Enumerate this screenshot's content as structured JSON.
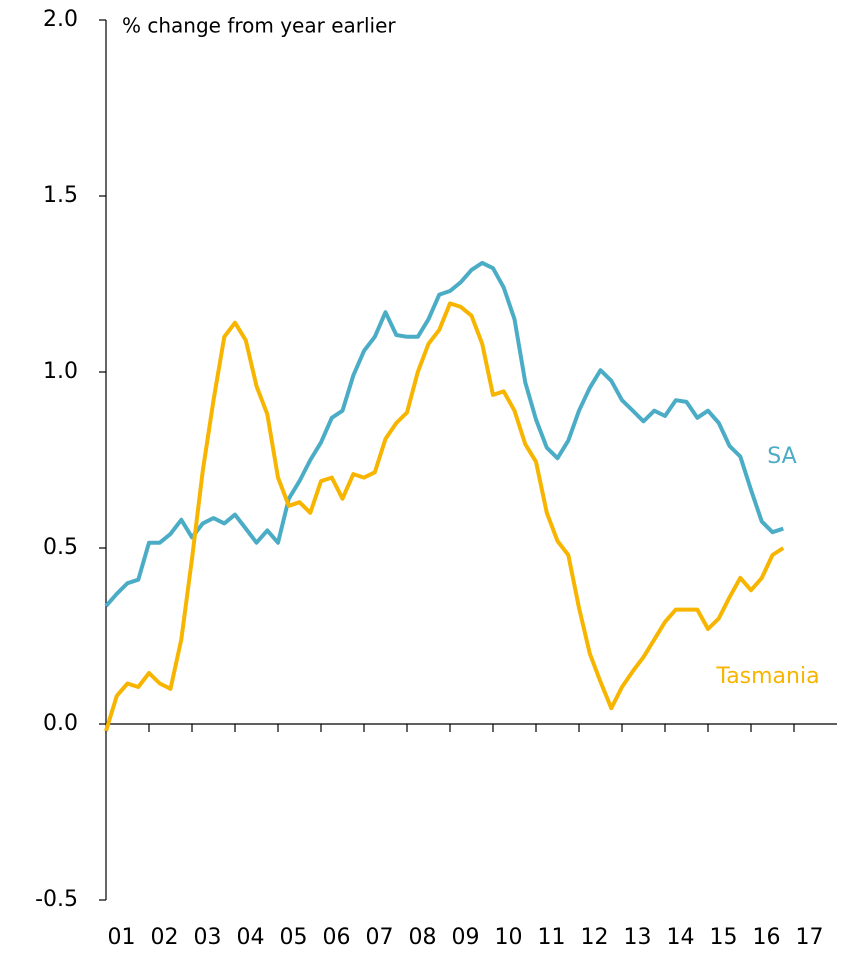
{
  "chart_data": {
    "type": "line",
    "y_axis_label": "% change from year earlier",
    "x": [
      2001,
      2001.25,
      2001.5,
      2001.75,
      2002,
      2002.25,
      2002.5,
      2002.75,
      2003,
      2003.25,
      2003.5,
      2003.75,
      2004,
      2004.25,
      2004.5,
      2004.75,
      2005,
      2005.25,
      2005.5,
      2005.75,
      2006,
      2006.25,
      2006.5,
      2006.75,
      2007,
      2007.25,
      2007.5,
      2007.75,
      2008,
      2008.25,
      2008.5,
      2008.75,
      2009,
      2009.25,
      2009.5,
      2009.75,
      2010,
      2010.25,
      2010.5,
      2010.75,
      2011,
      2011.25,
      2011.5,
      2011.75,
      2012,
      2012.25,
      2012.5,
      2012.75,
      2013,
      2013.25,
      2013.5,
      2013.75,
      2014,
      2014.25,
      2014.5,
      2014.75,
      2015,
      2015.25,
      2015.5,
      2015.75,
      2016,
      2016.25,
      2016.5,
      2016.75
    ],
    "series": [
      {
        "name": "SA",
        "color": "#4bacc6",
        "values": [
          0.335,
          0.37,
          0.4,
          0.41,
          0.515,
          0.515,
          0.54,
          0.58,
          0.53,
          0.57,
          0.585,
          0.57,
          0.595,
          0.555,
          0.515,
          0.55,
          0.515,
          0.64,
          0.69,
          0.75,
          0.8,
          0.87,
          0.89,
          0.99,
          1.06,
          1.1,
          1.17,
          1.105,
          1.1,
          1.1,
          1.15,
          1.22,
          1.23,
          1.255,
          1.29,
          1.31,
          1.295,
          1.24,
          1.15,
          0.97,
          0.865,
          0.785,
          0.755,
          0.805,
          0.89,
          0.955,
          1.005,
          0.975,
          0.92,
          0.89,
          0.86,
          0.89,
          0.875,
          0.92,
          0.915,
          0.87,
          0.89,
          0.855,
          0.79,
          0.76,
          0.665,
          0.575,
          0.545,
          0.555
        ]
      },
      {
        "name": "Tasmania",
        "color": "#f7b500",
        "values": [
          -0.02,
          0.08,
          0.115,
          0.105,
          0.145,
          0.115,
          0.1,
          0.24,
          0.47,
          0.72,
          0.92,
          1.1,
          1.14,
          1.09,
          0.96,
          0.88,
          0.7,
          0.62,
          0.63,
          0.6,
          0.69,
          0.7,
          0.64,
          0.71,
          0.7,
          0.715,
          0.81,
          0.855,
          0.885,
          1.0,
          1.08,
          1.12,
          1.195,
          1.185,
          1.16,
          1.08,
          0.935,
          0.945,
          0.89,
          0.795,
          0.745,
          0.6,
          0.52,
          0.48,
          0.33,
          0.2,
          0.12,
          0.045,
          0.105,
          0.15,
          0.19,
          0.24,
          0.29,
          0.325,
          0.325,
          0.325,
          0.27,
          0.3,
          0.36,
          0.415,
          0.38,
          0.415,
          0.48,
          0.5
        ]
      }
    ],
    "xlim": [
      2001,
      2018
    ],
    "xticks": [
      {
        "value": 2001,
        "label": "01"
      },
      {
        "value": 2002,
        "label": "02"
      },
      {
        "value": 2003,
        "label": "03"
      },
      {
        "value": 2004,
        "label": "04"
      },
      {
        "value": 2005,
        "label": "05"
      },
      {
        "value": 2006,
        "label": "06"
      },
      {
        "value": 2007,
        "label": "07"
      },
      {
        "value": 2008,
        "label": "08"
      },
      {
        "value": 2009,
        "label": "09"
      },
      {
        "value": 2010,
        "label": "10"
      },
      {
        "value": 2011,
        "label": "11"
      },
      {
        "value": 2012,
        "label": "12"
      },
      {
        "value": 2013,
        "label": "13"
      },
      {
        "value": 2014,
        "label": "14"
      },
      {
        "value": 2015,
        "label": "15"
      },
      {
        "value": 2016,
        "label": "16"
      },
      {
        "value": 2017,
        "label": "17"
      }
    ],
    "ylim": [
      -0.5,
      2.0
    ],
    "yticks": [
      -0.5,
      {
        "value": 0,
        "label": "0.0"
      },
      0.5,
      {
        "value": 1,
        "label": "1.0"
      },
      1.5,
      {
        "value": 2,
        "label": "2.0"
      }
    ],
    "grid": false
  }
}
